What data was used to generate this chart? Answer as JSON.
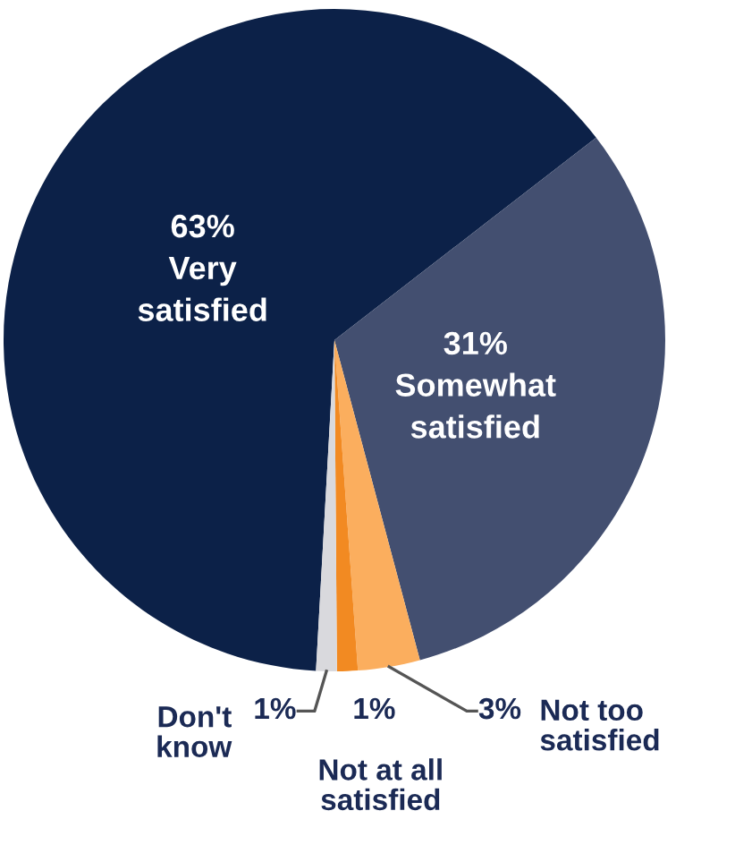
{
  "chart_data": {
    "type": "pie",
    "categories": [
      "Very\nsatisfied",
      "Somewhat\nsatisfied",
      "Not too\nsatisfied",
      "Not at all\nsatisfied",
      "Don't\nknow"
    ],
    "values": [
      63,
      31,
      3,
      1,
      1
    ],
    "value_labels": [
      "63%",
      "31%",
      "3%",
      "1%",
      "1%"
    ],
    "colors": [
      "#0c2148",
      "#434f70",
      "#fbae5e",
      "#f28a22",
      "#d9d9dd"
    ]
  }
}
